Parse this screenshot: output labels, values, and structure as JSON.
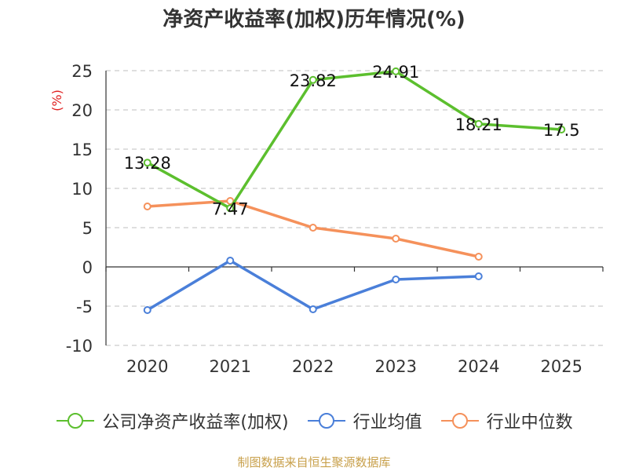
{
  "chart_data": {
    "type": "line",
    "title": "净资产收益率(加权)历年情况(%)",
    "ylabel": "(%)",
    "xlabel": "",
    "categories": [
      "2020",
      "2021",
      "2022",
      "2023",
      "2024",
      "2025"
    ],
    "y_ticks": [
      "25",
      "20",
      "15",
      "10",
      "5",
      "0",
      "-5",
      "-10"
    ],
    "ylim": [
      -10,
      25
    ],
    "grid": "horizontal dashed",
    "legend_position": "bottom",
    "series": [
      {
        "name": "公司净资产收益率(加权)",
        "color": "#5cbf2e",
        "values": [
          13.28,
          7.47,
          23.82,
          24.91,
          18.21,
          17.5
        ],
        "labels": [
          "13.28",
          "7.47",
          "23.82",
          "24.91",
          "18.21",
          "17.5"
        ]
      },
      {
        "name": "行业均值",
        "color": "#4a7fd9",
        "values": [
          -5.5,
          0.8,
          -5.4,
          -1.6,
          -1.2,
          null
        ]
      },
      {
        "name": "行业中位数",
        "color": "#f5915b",
        "values": [
          7.7,
          8.4,
          5.0,
          3.6,
          1.3,
          null
        ]
      }
    ]
  },
  "footer": {
    "source": "制图数据来自恒生聚源数据库"
  }
}
